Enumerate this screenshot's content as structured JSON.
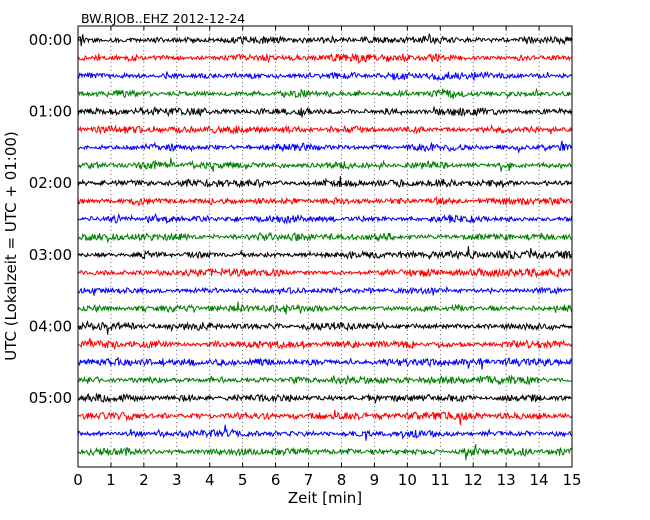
{
  "chart_data": {
    "type": "line",
    "title": "BW.RJOB..EHZ 2012-12-24",
    "xlabel": "Zeit  [min]",
    "ylabel": "UTC (Lokalzeit = UTC + 01:00)",
    "xlim": [
      0,
      15
    ],
    "x_ticks": [
      "0",
      "1",
      "2",
      "3",
      "4",
      "5",
      "6",
      "7",
      "8",
      "9",
      "10",
      "11",
      "12",
      "13",
      "14",
      "15"
    ],
    "y_tick_labels": [
      "00:00",
      "01:00",
      "02:00",
      "03:00",
      "04:00",
      "05:00"
    ],
    "trace_interval_minutes": 15,
    "trace_count": 24,
    "trace_colors": [
      "#000000",
      "#ff0000",
      "#0000ff",
      "#007f00"
    ],
    "grid": "vertical dotted lines at each minute"
  }
}
